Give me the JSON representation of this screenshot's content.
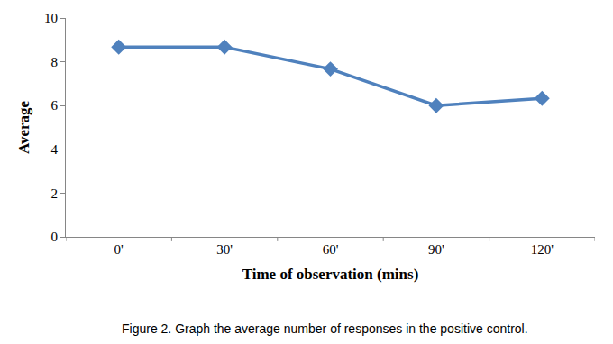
{
  "chart_data": {
    "type": "line",
    "caption": "Figure 2. Graph the average number of responses in the positive control.",
    "x_label": "Time of observation (mins)",
    "y_label": "Average",
    "categories": [
      "0'",
      "30'",
      "60'",
      "90'",
      "120'"
    ],
    "values": [
      8.67,
      8.67,
      7.67,
      6.0,
      6.33
    ],
    "color": "#4f81bd",
    "marker": "diamond",
    "ylim": [
      0,
      10
    ],
    "yticks": [
      0,
      2,
      4,
      6,
      8,
      10
    ],
    "grid": false
  }
}
